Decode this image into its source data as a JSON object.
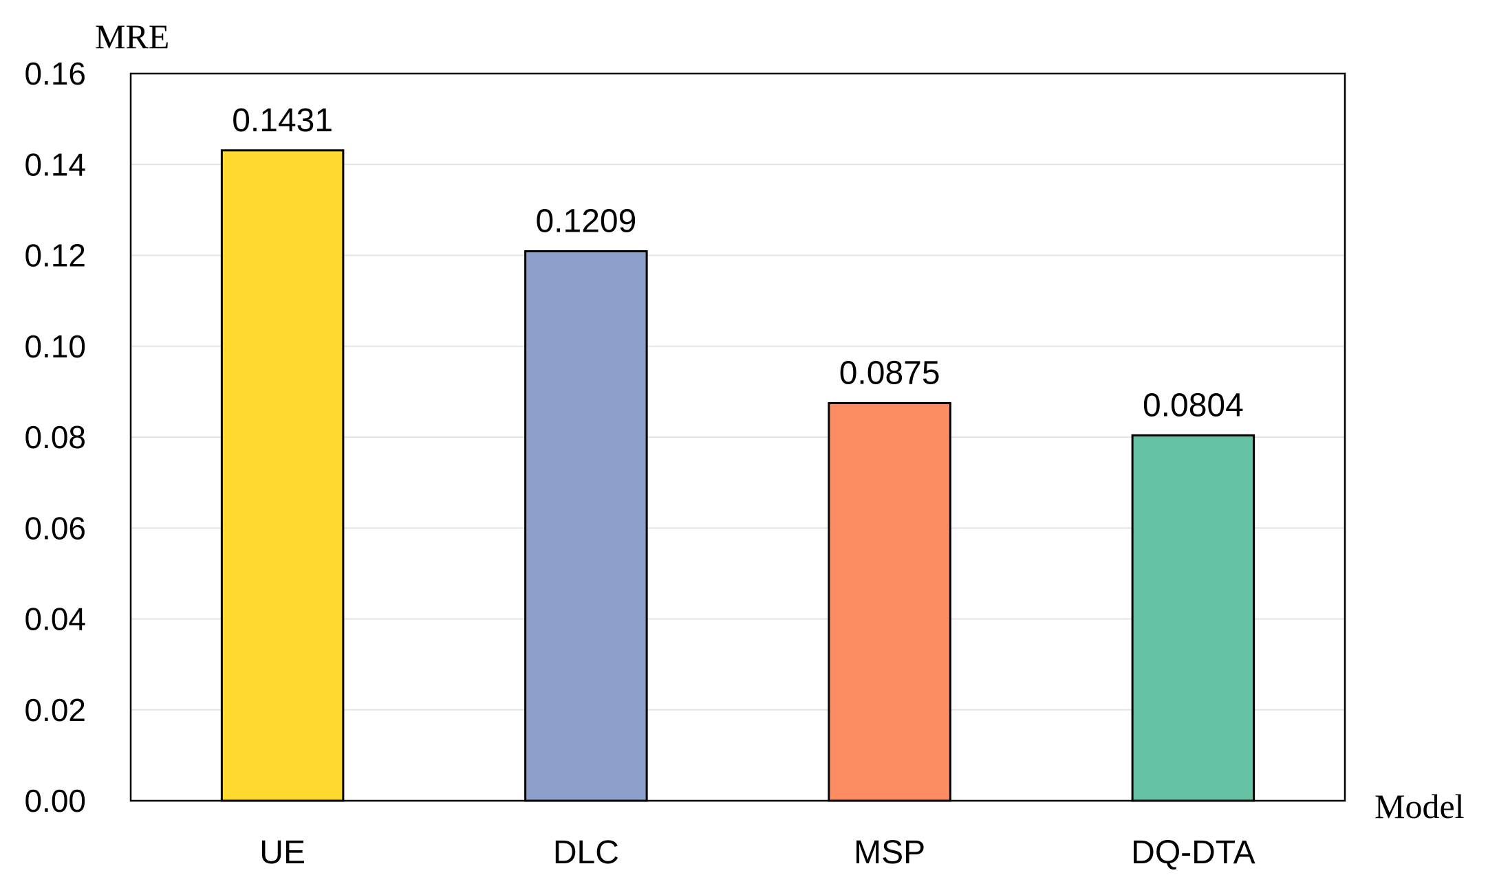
{
  "chart_data": {
    "type": "bar",
    "categories": [
      "UE",
      "DLC",
      "MSP",
      "DQ-DTA"
    ],
    "values": [
      0.1431,
      0.1209,
      0.0875,
      0.0804
    ],
    "value_labels": [
      "0.1431",
      "0.1209",
      "0.0875",
      "0.0804"
    ],
    "colors": [
      "#FFD92F",
      "#8DA0CB",
      "#FC8D62",
      "#66C2A5"
    ],
    "xlabel": "Model",
    "ylabel": "MRE",
    "ylim": [
      0,
      0.16
    ],
    "yticks": [
      0.0,
      0.02,
      0.04,
      0.06,
      0.08,
      0.1,
      0.12,
      0.14,
      0.16
    ],
    "ytick_labels": [
      "0.00",
      "0.02",
      "0.04",
      "0.06",
      "0.08",
      "0.10",
      "0.12",
      "0.14",
      "0.16"
    ],
    "grid": true,
    "legend": "none"
  }
}
